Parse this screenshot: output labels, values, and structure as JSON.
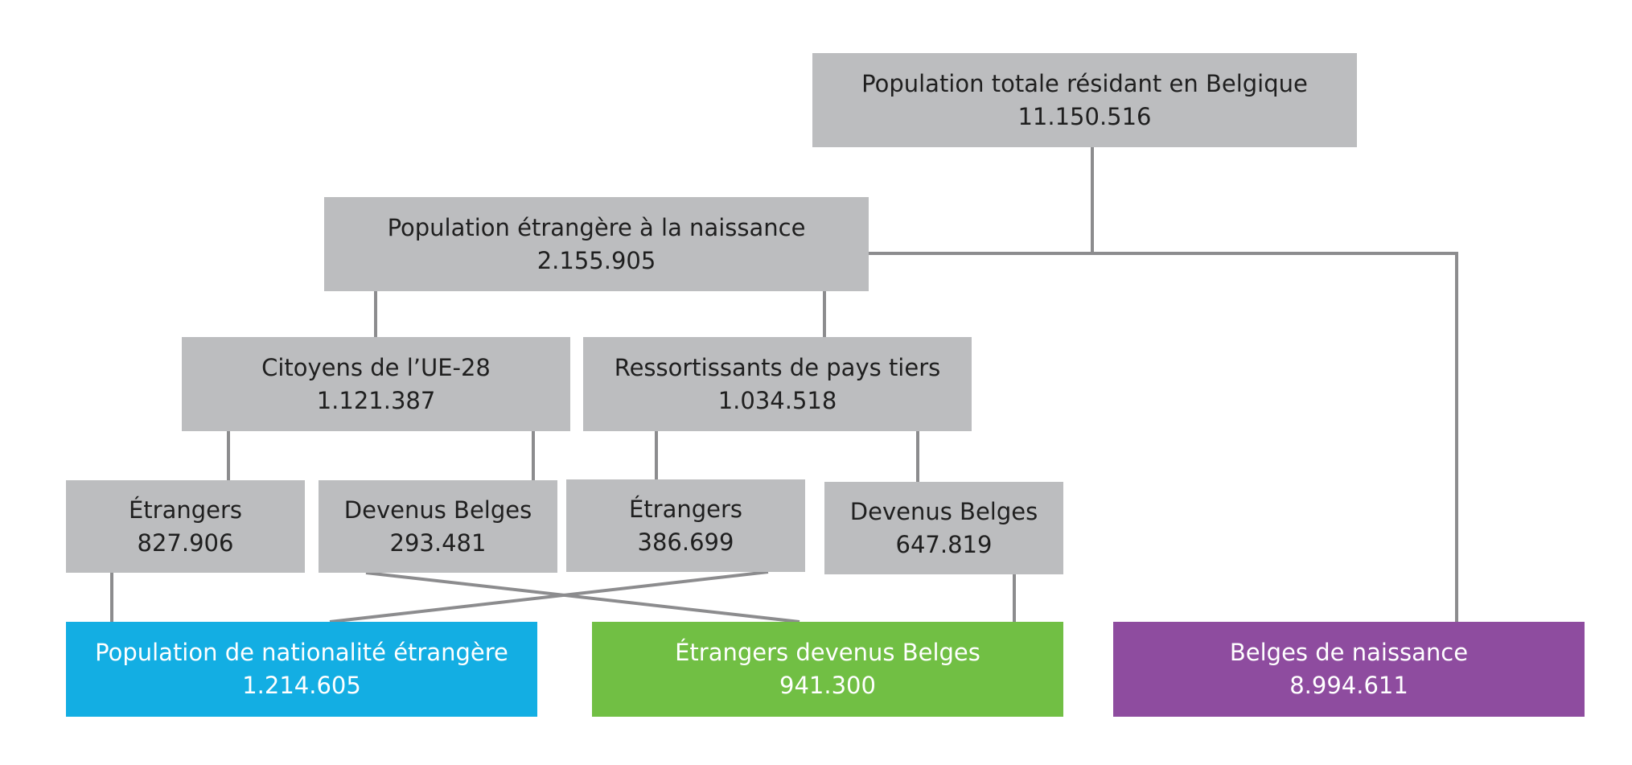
{
  "colors": {
    "gray_box": "#bcbdbf",
    "connector": "#8c8c8e",
    "blue": "#13aee3",
    "green": "#71bf44",
    "purple": "#8e4c9f",
    "text_dark": "#1f1f1f",
    "text_light": "#ffffff"
  },
  "nodes": {
    "total": {
      "label": "Population totale résidant en Belgique",
      "value": "11.150.516"
    },
    "foreign_birth": {
      "label": "Population étrangère à la naissance",
      "value": "2.155.905"
    },
    "eu28": {
      "label": "Citoyens de l’UE-28",
      "value": "1.121.387"
    },
    "third_country": {
      "label": "Ressortissants de pays tiers",
      "value": "1.034.518"
    },
    "eu_foreigners": {
      "label": "Étrangers",
      "value": "827.906"
    },
    "eu_belgian": {
      "label": "Devenus Belges",
      "value": "293.481"
    },
    "third_foreigners": {
      "label": "Étrangers",
      "value": "386.699"
    },
    "third_belgian": {
      "label": "Devenus Belges",
      "value": "647.819"
    },
    "foreign_nationality": {
      "label": "Population de nationalité étrangère",
      "value": "1.214.605"
    },
    "naturalized": {
      "label": "Étrangers devenus Belges",
      "value": "941.300"
    },
    "belgian_birth": {
      "label": "Belges de naissance",
      "value": "8.994.611"
    }
  },
  "edges": [
    {
      "from": "total",
      "to": "foreign_birth"
    },
    {
      "from": "total",
      "to": "belgian_birth"
    },
    {
      "from": "foreign_birth",
      "to": "eu28"
    },
    {
      "from": "foreign_birth",
      "to": "third_country"
    },
    {
      "from": "eu28",
      "to": "eu_foreigners"
    },
    {
      "from": "eu28",
      "to": "eu_belgian"
    },
    {
      "from": "third_country",
      "to": "third_foreigners"
    },
    {
      "from": "third_country",
      "to": "third_belgian"
    },
    {
      "from": "eu_foreigners",
      "to": "foreign_nationality"
    },
    {
      "from": "third_foreigners",
      "to": "foreign_nationality"
    },
    {
      "from": "eu_belgian",
      "to": "naturalized"
    },
    {
      "from": "third_belgian",
      "to": "naturalized"
    }
  ]
}
